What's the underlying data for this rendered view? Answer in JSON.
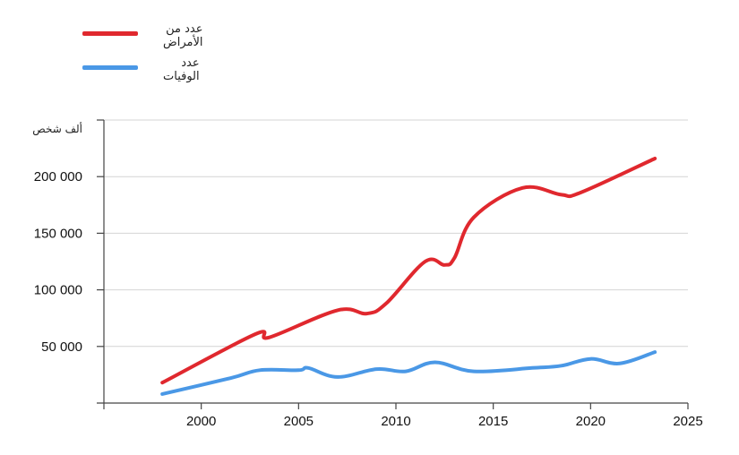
{
  "chart_data": {
    "type": "line",
    "title": "",
    "xlabel": "",
    "ylabel": "ألف شخص",
    "xlim": [
      1995,
      2025
    ],
    "ylim": [
      0,
      250000
    ],
    "x_ticks": [
      2000,
      2005,
      2010,
      2015,
      2020,
      2025
    ],
    "y_ticks": [
      50000,
      100000,
      150000,
      200000
    ],
    "y_tick_labels": [
      "50 000",
      "100 000",
      "150 000",
      "200 000"
    ],
    "grid": "horizontal",
    "legend_position": "top-left",
    "series": [
      {
        "name": "عدد من الأمراض",
        "color": "#e0282e",
        "x": [
          1998,
          2002.8,
          2003.5,
          2007,
          2008.5,
          2009.5,
          2011.5,
          2012.5,
          2013,
          2014,
          2016.5,
          2018.5,
          2019.5,
          2023.3
        ],
        "y": [
          18000,
          61000,
          58000,
          82000,
          79000,
          88000,
          125000,
          122000,
          128000,
          164000,
          190000,
          184000,
          186000,
          216000
        ]
      },
      {
        "name": "عدد الوفيات",
        "color": "#4a98e6",
        "x": [
          1998,
          2001.5,
          2003,
          2005,
          2005.5,
          2007,
          2009,
          2010.5,
          2012,
          2014,
          2017,
          2018.5,
          2020,
          2021.5,
          2023.3
        ],
        "y": [
          8000,
          22000,
          29000,
          29000,
          31000,
          23000,
          30000,
          28000,
          36000,
          28000,
          31000,
          33000,
          39000,
          35000,
          45000
        ]
      }
    ]
  }
}
